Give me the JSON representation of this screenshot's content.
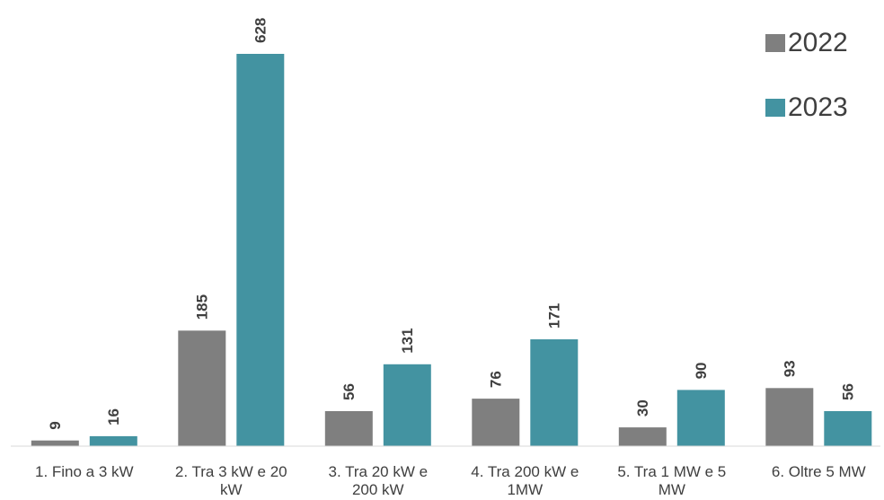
{
  "chart_data": {
    "type": "bar",
    "categories": [
      [
        "1. Fino a 3 kW"
      ],
      [
        "2. Tra 3 kW e 20",
        "kW"
      ],
      [
        "3. Tra 20 kW e",
        "200 kW"
      ],
      [
        "4. Tra 200 kW e",
        "1MW"
      ],
      [
        "5. Tra 1 MW e 5",
        "MW"
      ],
      [
        "6. Oltre 5 MW"
      ]
    ],
    "series": [
      {
        "name": "2022",
        "values": [
          9,
          185,
          56,
          76,
          30,
          93
        ],
        "color": "#7f7f7f"
      },
      {
        "name": "2023",
        "values": [
          16,
          628,
          131,
          171,
          90,
          56
        ],
        "color": "#4393a1"
      }
    ],
    "ylim": [
      0,
      628
    ],
    "grid": false,
    "legend": "top-right",
    "data_labels": true
  }
}
